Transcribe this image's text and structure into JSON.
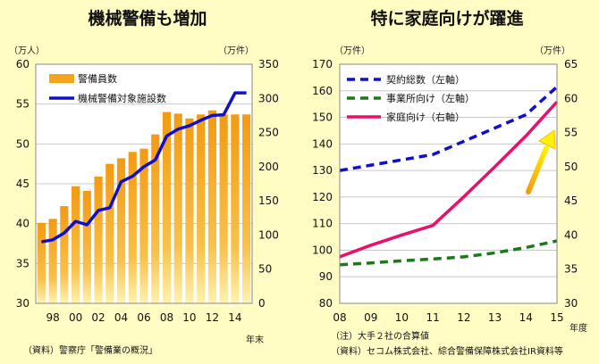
{
  "chart_data": [
    {
      "type": "bar",
      "title": "機械警備も増加",
      "left_unit": "（万人）",
      "right_unit": "（万件）",
      "x_suffix": "年末",
      "source": "（資料）警察庁「警備業の概況」",
      "categories": [
        "97",
        "98",
        "99",
        "00",
        "01",
        "02",
        "03",
        "04",
        "05",
        "06",
        "07",
        "08",
        "09",
        "10",
        "11",
        "12",
        "13",
        "14",
        "15"
      ],
      "x_tick_labels": [
        "98",
        "00",
        "02",
        "04",
        "06",
        "08",
        "10",
        "12",
        "14"
      ],
      "x_tick_positions": [
        "98",
        "00",
        "02",
        "04",
        "06",
        "08",
        "10",
        "12",
        "14"
      ],
      "ylim_left": [
        30,
        60
      ],
      "yticks_left": [
        30,
        35,
        40,
        45,
        50,
        55,
        60
      ],
      "ylim_right": [
        0,
        350
      ],
      "yticks_right": [
        0,
        50,
        100,
        150,
        200,
        250,
        300,
        350
      ],
      "series": [
        {
          "name": "警備員数",
          "axis": "left",
          "kind": "bar",
          "color": "#f5a21c",
          "values": [
            40.1,
            40.6,
            42.2,
            44.7,
            44.1,
            45.9,
            47.5,
            48.2,
            49.0,
            49.4,
            51.2,
            54.0,
            53.8,
            53.2,
            53.7,
            54.2,
            53.7,
            53.7,
            53.7
          ]
        },
        {
          "name": "機械警備対象施設数",
          "axis": "right",
          "kind": "line",
          "color": "#1010cc",
          "values": [
            90,
            93,
            103,
            120,
            115,
            136,
            140,
            178,
            186,
            200,
            210,
            245,
            255,
            260,
            268,
            275,
            276,
            308,
            308
          ]
        }
      ]
    },
    {
      "type": "line",
      "title": "特に家庭向けが躍進",
      "left_unit": "（万件）",
      "right_unit": "（万件）",
      "x_suffix": "年度",
      "notes": [
        "（注）大手２社の合算値",
        "（資料）セコム株式会社、綜合警備保障株式会社IR資料等"
      ],
      "x": [
        "08",
        "09",
        "10",
        "11",
        "12",
        "13",
        "14",
        "15"
      ],
      "ylim_left": [
        80,
        170
      ],
      "yticks_left": [
        80,
        90,
        100,
        110,
        120,
        130,
        140,
        150,
        160,
        170
      ],
      "ylim_right": [
        30,
        65
      ],
      "yticks_right": [
        30,
        35,
        40,
        45,
        50,
        55,
        60,
        65
      ],
      "series": [
        {
          "name": "契約総数（左軸）",
          "axis": "left",
          "style": "dashed",
          "color": "#1010cc",
          "values": [
            130,
            132,
            134,
            136,
            141,
            146,
            151,
            161.5
          ]
        },
        {
          "name": "事業所向け（左軸）",
          "axis": "left",
          "style": "dashed",
          "color": "#1a7a1a",
          "values": [
            94.5,
            95.2,
            96.0,
            96.7,
            97.5,
            99.0,
            101.0,
            103.5
          ]
        },
        {
          "name": "家庭向け（右軸）",
          "axis": "right",
          "style": "solid",
          "color": "#e8106a",
          "values": [
            36.8,
            38.5,
            40.0,
            41.4,
            45.6,
            50.0,
            54.5,
            59.5
          ]
        }
      ]
    }
  ]
}
